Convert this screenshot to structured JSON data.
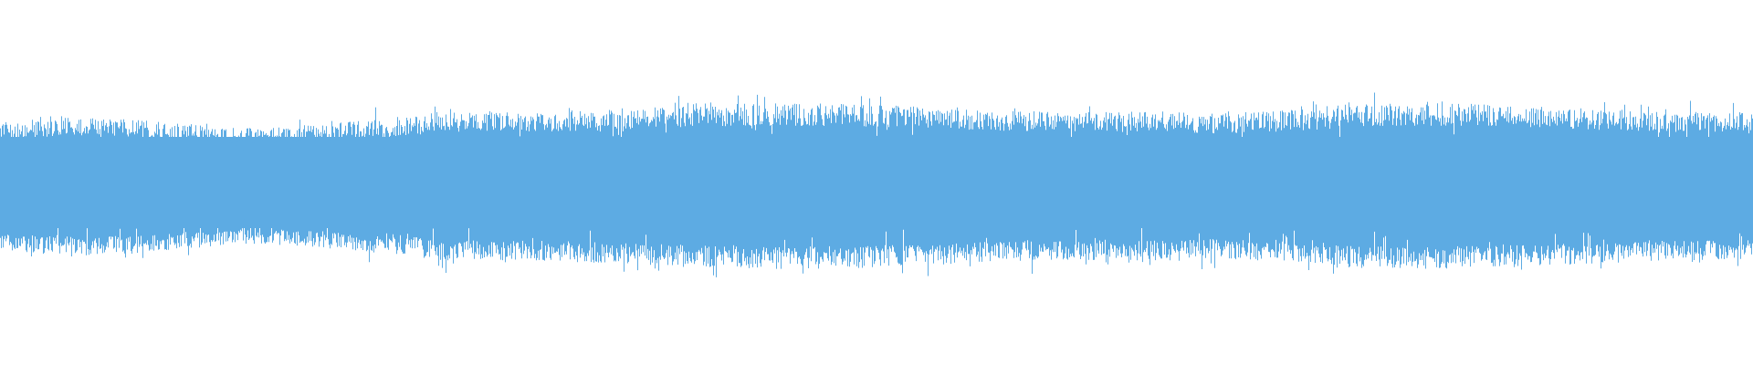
{
  "waveform": {
    "type": "audio-waveform",
    "color": "#5dabe3",
    "background": "#ffffff"
  }
}
